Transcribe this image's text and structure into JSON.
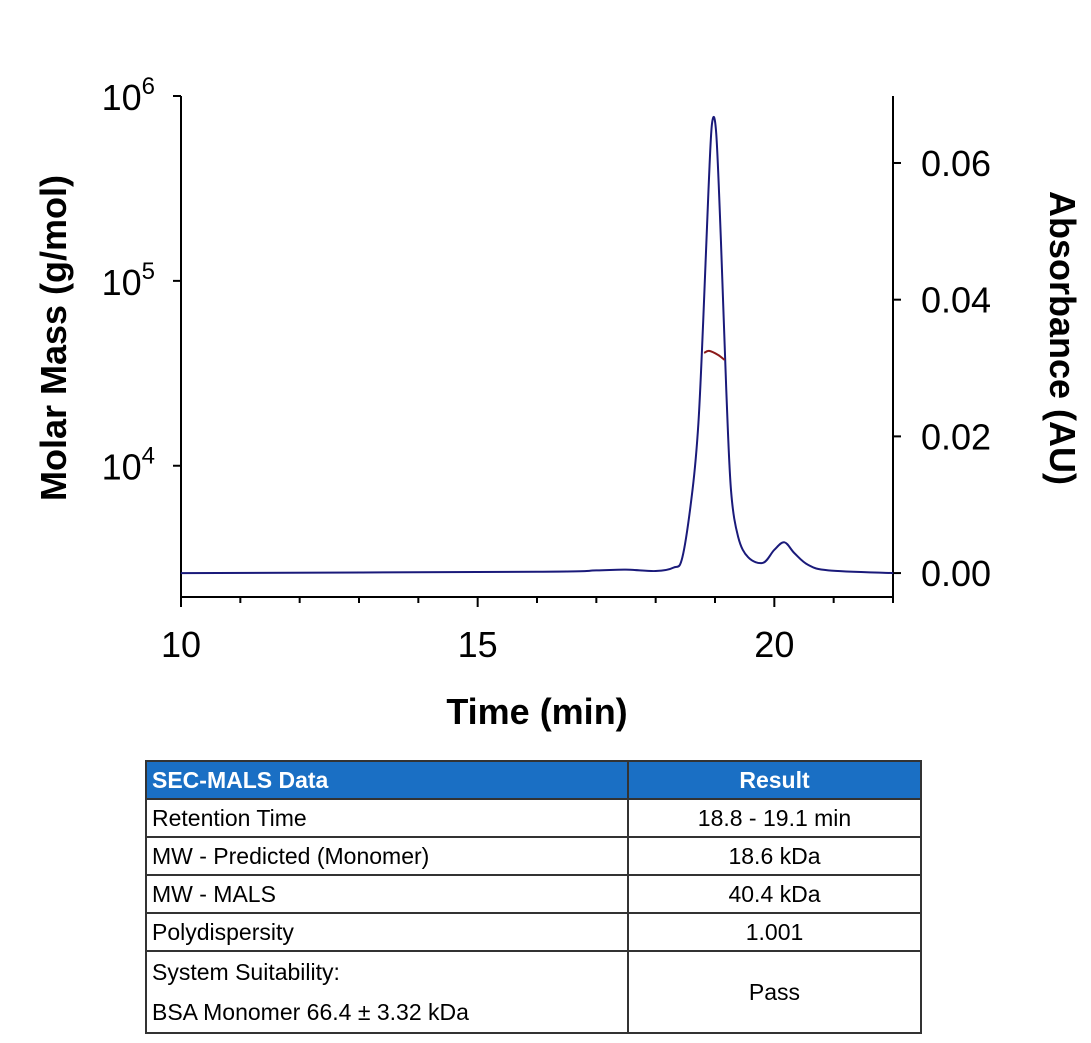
{
  "chart_data": {
    "type": "line",
    "xlabel": "Time (min)",
    "ylabel_left": "Molar Mass (g/mol)",
    "ylabel_right": "Absorbance (AU)",
    "xlim": [
      10,
      22
    ],
    "x_ticks": [
      10,
      15,
      20
    ],
    "x_tick_labels": [
      "10",
      "15",
      "20"
    ],
    "x_minor_step": 1,
    "ylim_left_log10": [
      3.29,
      6
    ],
    "y_left_ticks": [
      {
        "base": "10",
        "exp": "4",
        "value": 10000
      },
      {
        "base": "10",
        "exp": "5",
        "value": 100000
      },
      {
        "base": "10",
        "exp": "6",
        "value": 1000000
      }
    ],
    "ylim_right": [
      -0.0035,
      0.0698
    ],
    "y_right_ticks": [
      0,
      0.02,
      0.04,
      0.06
    ],
    "y_right_tick_labels": [
      "0.00",
      "0.02",
      "0.04",
      "0.06"
    ],
    "series": [
      {
        "name": "Absorbance",
        "axis": "right",
        "color": "#1a1a7a",
        "x": [
          10,
          16,
          17,
          17.5,
          18,
          18.3,
          18.45,
          18.62,
          18.72,
          18.8,
          18.89,
          18.95,
          19.02,
          19.1,
          19.19,
          19.27,
          19.39,
          19.56,
          19.81,
          20.0,
          20.17,
          20.34,
          20.57,
          20.91,
          22
        ],
        "y": [
          0,
          0.0002,
          0.0004,
          0.0005,
          0.0003,
          0.0008,
          0.0023,
          0.0121,
          0.0219,
          0.0366,
          0.056,
          0.0658,
          0.0644,
          0.0486,
          0.0268,
          0.0121,
          0.0053,
          0.0023,
          0.0015,
          0.0034,
          0.0045,
          0.0029,
          0.0012,
          0.0004,
          0
        ]
      },
      {
        "name": "Molar Mass",
        "axis": "left",
        "color": "#8b1a1a",
        "x": [
          18.82,
          18.9,
          19.05,
          19.16
        ],
        "y": [
          40800,
          41800,
          39800,
          37400
        ]
      }
    ]
  },
  "table": {
    "headers": [
      "SEC-MALS Data",
      "Result"
    ],
    "rows": [
      {
        "label": "Retention Time",
        "value": "18.8 - 19.1 min"
      },
      {
        "label": "MW - Predicted (Monomer)",
        "value": "18.6 kDa"
      },
      {
        "label": "MW - MALS",
        "value": "40.4 kDa"
      },
      {
        "label": "Polydispersity",
        "value": "1.001"
      },
      {
        "label": "System Suitability:",
        "label2": "BSA Monomer 66.4 ± 3.32 kDa",
        "value": "Pass"
      }
    ]
  }
}
